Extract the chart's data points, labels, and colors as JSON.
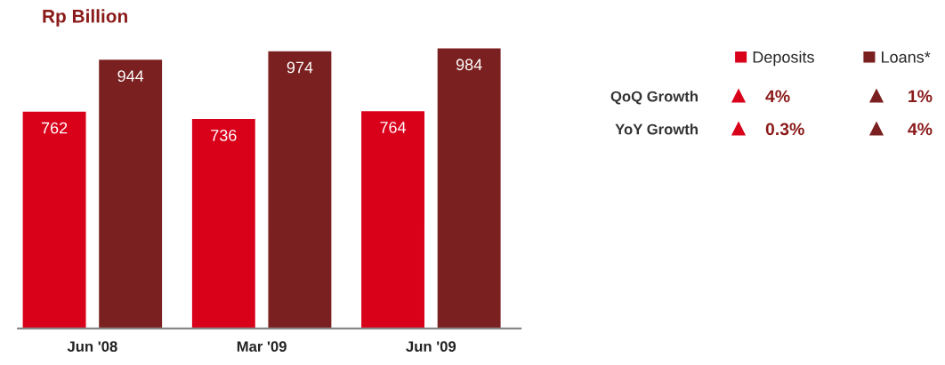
{
  "chart_data": {
    "type": "bar",
    "title": "Rp Billion",
    "categories": [
      "Jun '08",
      "Mar '09",
      "Jun '09"
    ],
    "series": [
      {
        "name": "Deposits",
        "color": "#d9001a",
        "values": [
          762,
          736,
          764
        ]
      },
      {
        "name": "Loans*",
        "color": "#7b2020",
        "values": [
          944,
          974,
          984
        ]
      }
    ],
    "data_labels": true,
    "legend": "top right",
    "grid": false,
    "annotations": [
      "QoQ Growth",
      "4%",
      "1%",
      "YoY Growth",
      "0.3%",
      "4%"
    ]
  }
}
